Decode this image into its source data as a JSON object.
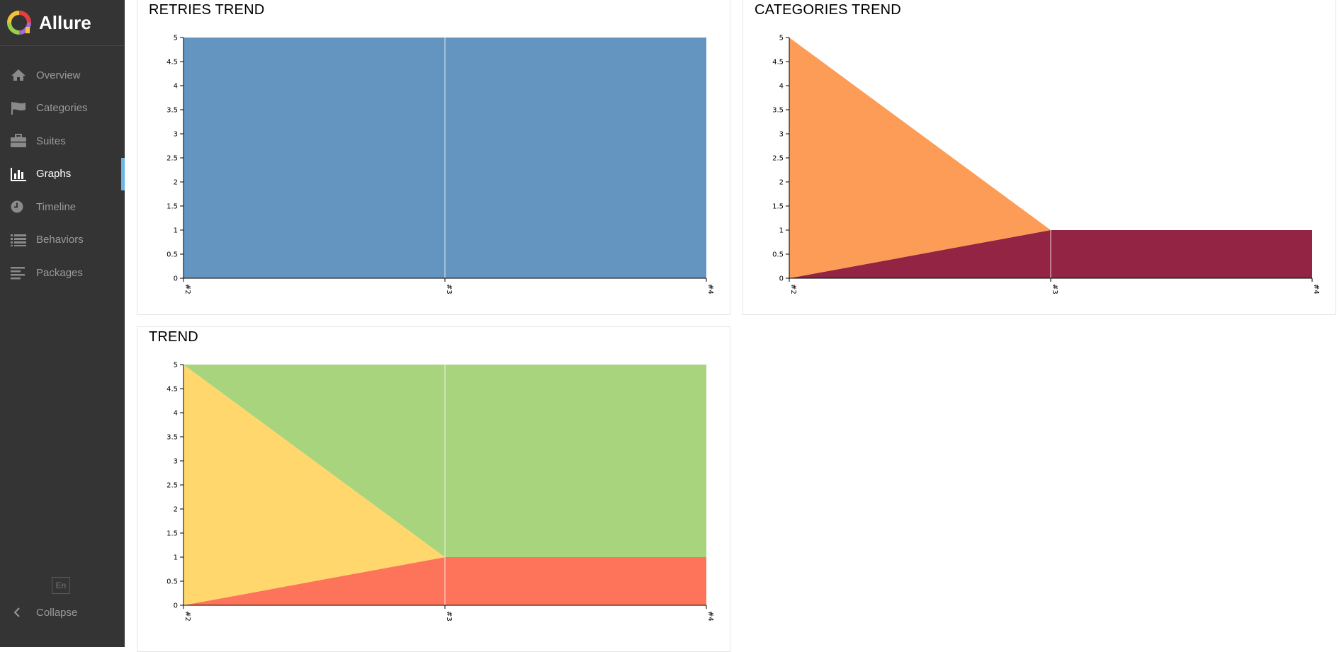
{
  "app": {
    "title": "Allure",
    "logo_icon": "allure-logo-icon"
  },
  "sidebar": {
    "items": [
      {
        "label": "Overview",
        "icon": "home-icon",
        "active": false
      },
      {
        "label": "Categories",
        "icon": "flag-icon",
        "active": false
      },
      {
        "label": "Suites",
        "icon": "briefcase-icon",
        "active": false
      },
      {
        "label": "Graphs",
        "icon": "bar-chart-icon",
        "active": true
      },
      {
        "label": "Timeline",
        "icon": "clock-icon",
        "active": false
      },
      {
        "label": "Behaviors",
        "icon": "list-icon",
        "active": false
      },
      {
        "label": "Packages",
        "icon": "align-left-icon",
        "active": false
      }
    ],
    "language": "En",
    "collapse_label": "Collapse",
    "active_color": "#6cb4e4"
  },
  "widgets": {
    "retries": {
      "title": "RETRIES TREND"
    },
    "categories": {
      "title": "CATEGORIES TREND"
    },
    "trend": {
      "title": "TREND"
    }
  },
  "chart_data": [
    {
      "id": "retries",
      "type": "area",
      "stacked": true,
      "title": "RETRIES TREND",
      "x": [
        "#2",
        "#3",
        "#4"
      ],
      "ylim": [
        0,
        5
      ],
      "yticks": [
        "0",
        "0.5",
        "1",
        "1.5",
        "2",
        "2.5",
        "3",
        "3.5",
        "4",
        "4.5",
        "5"
      ],
      "series": [
        {
          "values": [
            5,
            5,
            5
          ],
          "color": "#6395c0"
        }
      ]
    },
    {
      "id": "categories",
      "type": "area",
      "stacked": true,
      "title": "CATEGORIES TREND",
      "x": [
        "#2",
        "#3",
        "#4"
      ],
      "ylim": [
        0,
        5
      ],
      "yticks": [
        "0",
        "0.5",
        "1",
        "1.5",
        "2",
        "2.5",
        "3",
        "3.5",
        "4",
        "4.5",
        "5"
      ],
      "series": [
        {
          "values": [
            0,
            1,
            1
          ],
          "color": "#932444"
        },
        {
          "values": [
            5,
            0,
            0
          ],
          "color": "#fd9c56"
        }
      ]
    },
    {
      "id": "trend",
      "type": "area",
      "stacked": true,
      "title": "TREND",
      "x": [
        "#2",
        "#3",
        "#4"
      ],
      "ylim": [
        0,
        5
      ],
      "yticks": [
        "0",
        "0.5",
        "1",
        "1.5",
        "2",
        "2.5",
        "3",
        "3.5",
        "4",
        "4.5",
        "5"
      ],
      "series": [
        {
          "values": [
            0,
            1,
            1
          ],
          "color": "#fd745a"
        },
        {
          "values": [
            5,
            0,
            0
          ],
          "color": "#ffd76c"
        },
        {
          "values": [
            0,
            4,
            4
          ],
          "color": "#a8d47d"
        }
      ]
    }
  ]
}
